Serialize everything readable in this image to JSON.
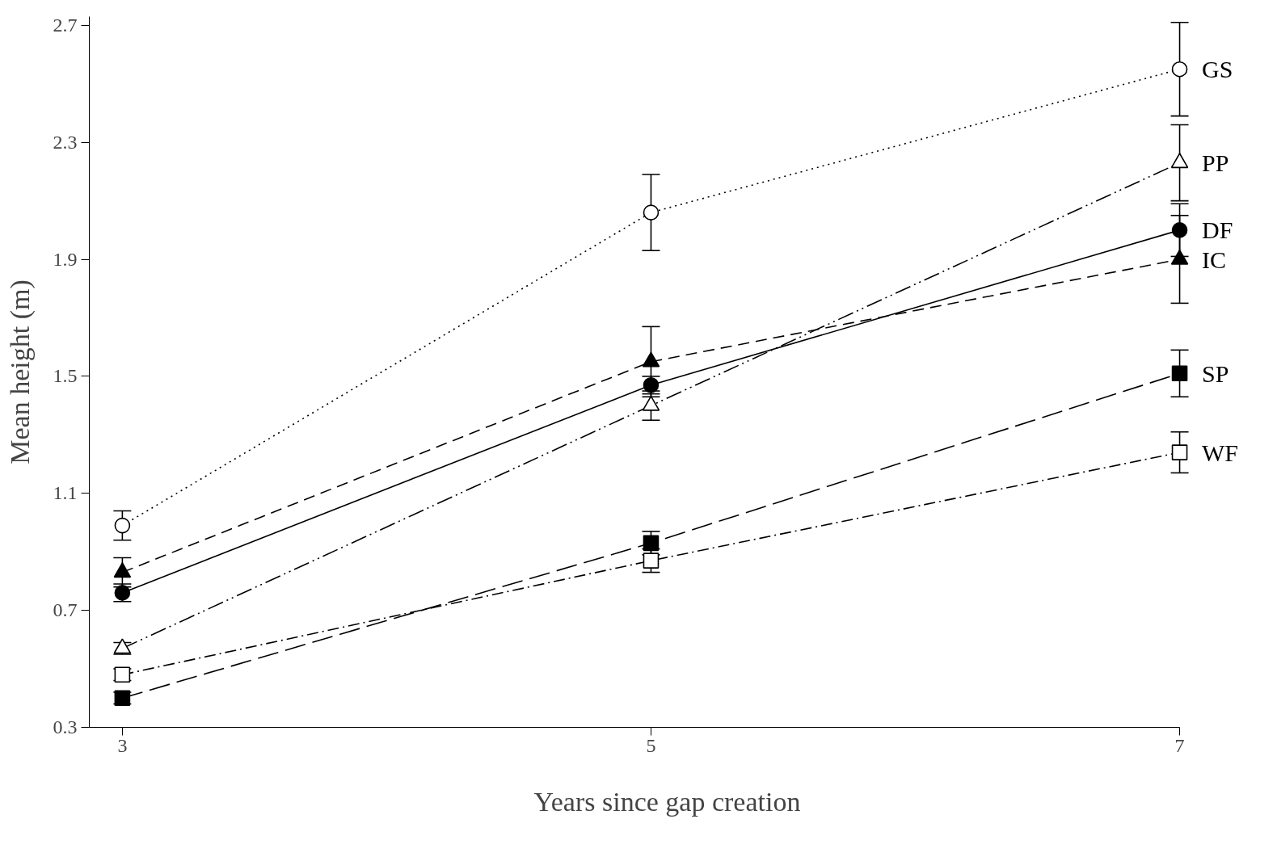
{
  "chart_data": {
    "type": "line",
    "xlabel": "Years since gap creation",
    "ylabel": "Mean height (m)",
    "x": [
      3,
      5,
      7
    ],
    "xlim": [
      2.875,
      7
    ],
    "xticks": [
      3,
      5,
      7
    ],
    "ylim": [
      0.3,
      2.73
    ],
    "yticks": [
      0.3,
      0.7,
      1.1,
      1.5,
      1.9,
      2.3,
      2.7
    ],
    "grid": false,
    "legend": "right",
    "series": [
      {
        "name": "GS",
        "color": "#000000",
        "marker": "circle",
        "colors": [
          "#ffffff",
          "#ffffff",
          "#ffffff"
        ],
        "line_style": "dotted",
        "values": [
          0.99,
          2.06,
          2.55
        ],
        "errors": [
          0.05,
          0.13,
          0.16
        ]
      },
      {
        "name": "PP",
        "color": "#000000",
        "marker": "triangle",
        "colors": [
          "#ffffff",
          "#ffffff",
          "#ffffff"
        ],
        "line_style": "dashdotdot",
        "values": [
          0.57,
          1.4,
          2.23
        ],
        "errors": [
          0.02,
          0.05,
          0.13
        ]
      },
      {
        "name": "DF",
        "color": "#000000",
        "marker": "circle",
        "line_style": "solid",
        "values": [
          0.76,
          1.47,
          2.0
        ],
        "errors": [
          0.03,
          0.03,
          0.09
        ]
      },
      {
        "name": "IC",
        "color": "#000000",
        "marker": "triangle",
        "line_style": "dashed",
        "values": [
          0.83,
          1.55,
          1.9
        ],
        "errors": [
          0.05,
          0.12,
          0.15
        ]
      },
      {
        "name": "SP",
        "color": "#000000",
        "marker": "square",
        "line_style": "longdash",
        "values": [
          0.4,
          0.93,
          1.51
        ],
        "errors": [
          0.02,
          0.04,
          0.08
        ]
      },
      {
        "name": "WF",
        "color": "#000000",
        "marker": "square",
        "colors": [
          "#ffffff",
          "#ffffff",
          "#ffffff"
        ],
        "line_style": "dashdot",
        "values": [
          0.48,
          0.87,
          1.24
        ],
        "errors": [
          0.02,
          0.04,
          0.07
        ]
      }
    ]
  }
}
